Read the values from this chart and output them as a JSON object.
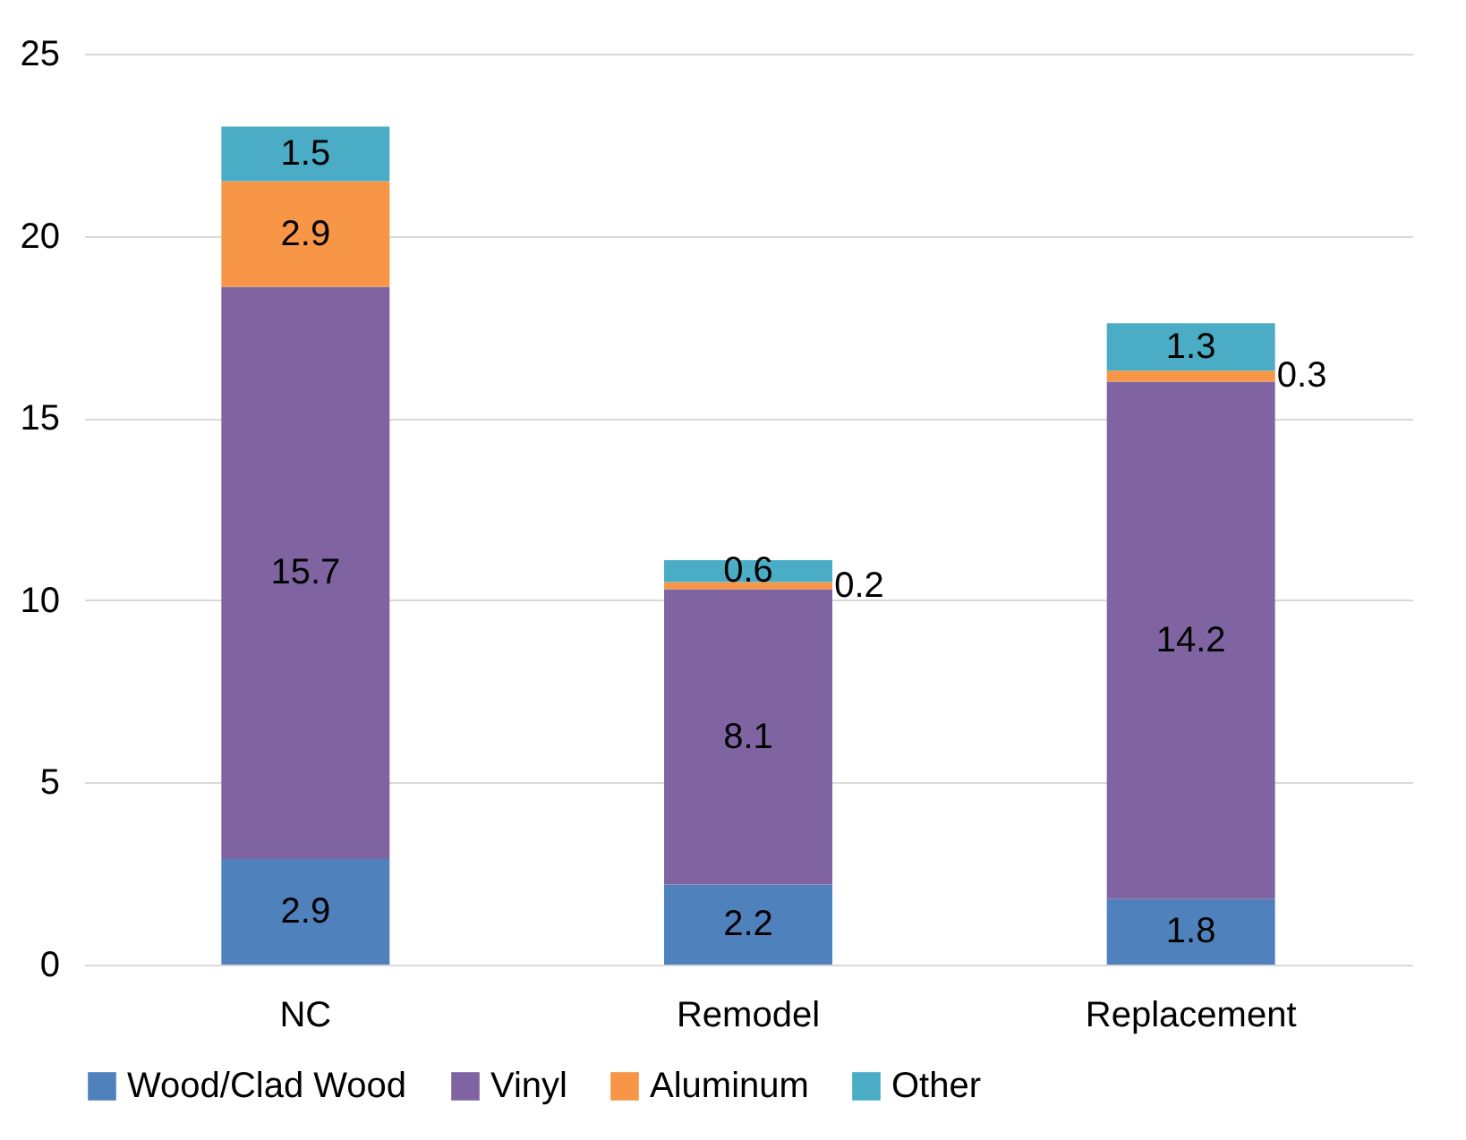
{
  "chart_data": {
    "type": "bar",
    "stacked": true,
    "categories": [
      "NC",
      "Remodel",
      "Replacement"
    ],
    "series": [
      {
        "name": "Wood/Clad Wood",
        "color": "#4f81bd",
        "values": [
          2.9,
          2.2,
          1.8
        ]
      },
      {
        "name": "Vinyl",
        "color": "#8064a2",
        "values": [
          15.7,
          8.1,
          14.2
        ]
      },
      {
        "name": "Aluminum",
        "color": "#f79646",
        "values": [
          2.9,
          0.2,
          0.3
        ]
      },
      {
        "name": "Other",
        "color": "#4bacc6",
        "values": [
          1.5,
          0.6,
          1.3
        ]
      }
    ],
    "ylim": [
      0,
      25
    ],
    "yticks": [
      0,
      5,
      10,
      15,
      20,
      25
    ],
    "grid": "y",
    "legend": "bottom",
    "data_labels": true
  }
}
